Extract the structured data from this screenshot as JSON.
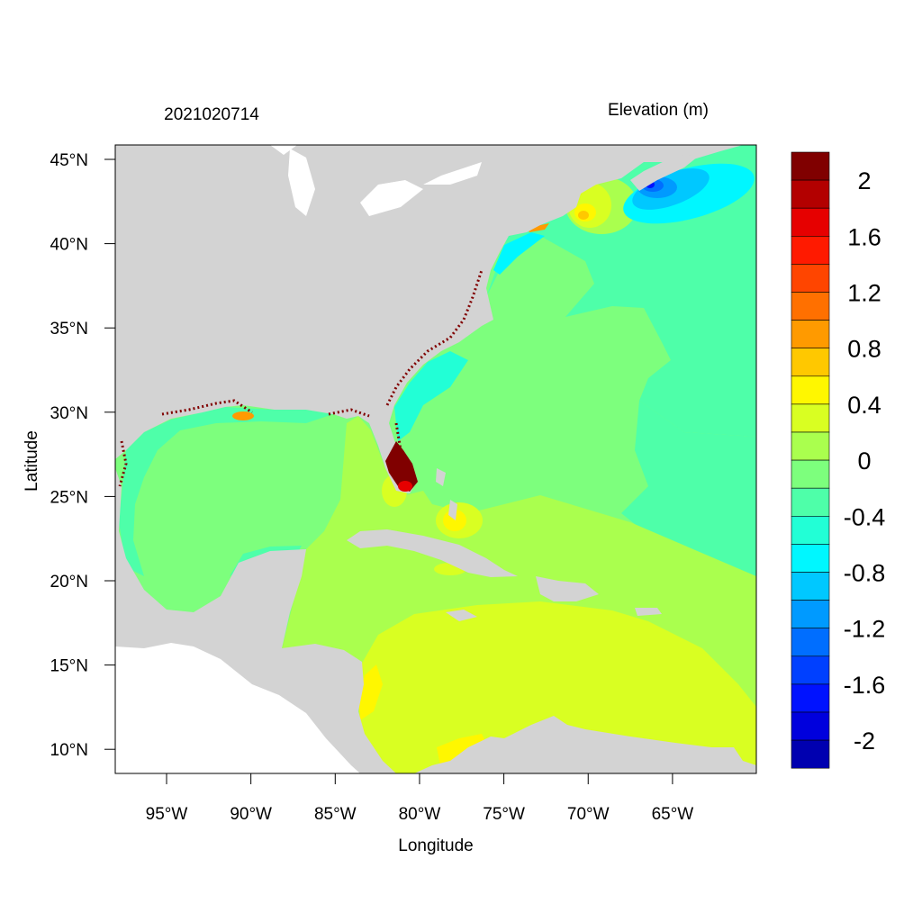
{
  "title_left": "2021020714",
  "title_right": "Elevation (m)",
  "x_axis": {
    "label": "Longitude",
    "ticks": [
      "95°W",
      "90°W",
      "85°W",
      "80°W",
      "75°W",
      "70°W",
      "65°W"
    ],
    "tick_values": [
      -95,
      -90,
      -85,
      -80,
      -75,
      -70,
      -65
    ],
    "range": [
      -98,
      -60
    ]
  },
  "y_axis": {
    "label": "Latitude",
    "ticks": [
      "45°N",
      "40°N",
      "35°N",
      "30°N",
      "25°N",
      "20°N",
      "15°N",
      "10°N"
    ],
    "tick_values": [
      45,
      40,
      35,
      30,
      25,
      20,
      15,
      10
    ],
    "range": [
      8.5,
      45.8
    ]
  },
  "colorbar": {
    "labels": [
      "2",
      "1.6",
      "1.2",
      "0.8",
      "0.4",
      "0",
      "-0.4",
      "-0.8",
      "-1.2",
      "-1.6",
      "-2"
    ],
    "levels": [
      2.2,
      2.0,
      1.8,
      1.6,
      1.4,
      1.2,
      1.0,
      0.8,
      0.6,
      0.4,
      0.2,
      0.0,
      -0.2,
      -0.4,
      -0.6,
      -0.8,
      -1.0,
      -1.2,
      -1.4,
      -1.6,
      -1.8,
      -2.0,
      -2.2
    ],
    "colors": [
      "#800000",
      "#B30000",
      "#E60000",
      "#FF1A00",
      "#FF4500",
      "#FF7000",
      "#FF9A00",
      "#FFC800",
      "#FFF700",
      "#D9FF22",
      "#AAFF4E",
      "#7DFF7D",
      "#4EFFA9",
      "#22FFD6",
      "#00F7FF",
      "#00C8FF",
      "#009AFF",
      "#006EFF",
      "#0040FF",
      "#0012FF",
      "#0000DD",
      "#0000B0"
    ]
  },
  "colors": {
    "land": "#D3D3D3",
    "nodata": "#FFFFFF"
  }
}
